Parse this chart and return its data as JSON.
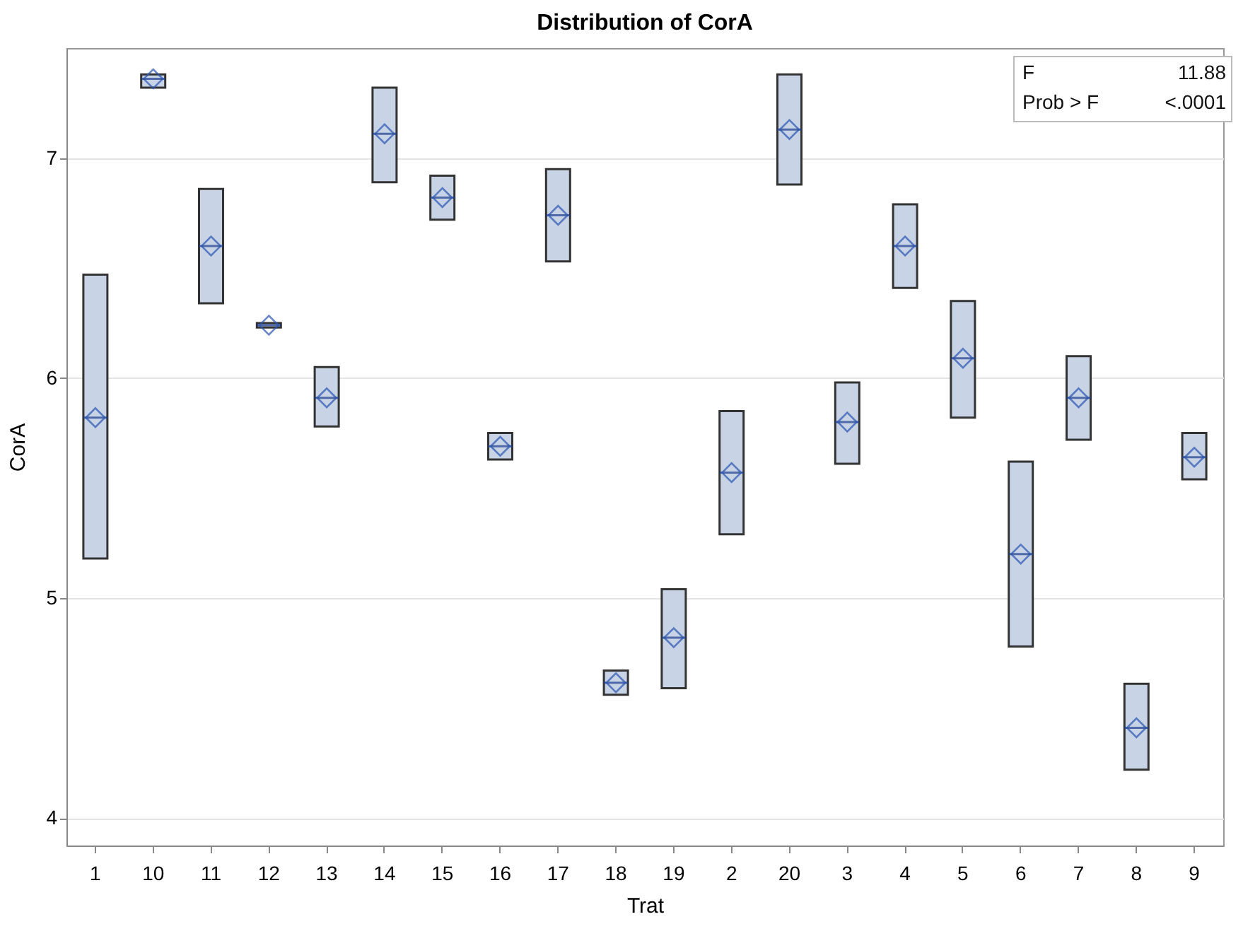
{
  "chart_data": {
    "type": "box",
    "title": "Distribution of CorA",
    "xlabel": "Trat",
    "ylabel": "CorA",
    "categories": [
      "1",
      "10",
      "11",
      "12",
      "13",
      "14",
      "15",
      "16",
      "17",
      "18",
      "19",
      "2",
      "20",
      "3",
      "4",
      "5",
      "6",
      "7",
      "8",
      "9"
    ],
    "color": "#c8d4e6",
    "boxes": [
      {
        "low": 5.18,
        "q1": 5.18,
        "median": 5.82,
        "q3": 6.47,
        "high": 6.47,
        "mean": 5.82
      },
      {
        "low": 7.32,
        "q1": 7.32,
        "median": 7.36,
        "q3": 7.38,
        "high": 7.38,
        "mean": 7.36
      },
      {
        "low": 6.34,
        "q1": 6.34,
        "median": 6.6,
        "q3": 6.86,
        "high": 6.86,
        "mean": 6.6
      },
      {
        "low": 6.23,
        "q1": 6.23,
        "median": 6.24,
        "q3": 6.25,
        "high": 6.25,
        "mean": 6.24
      },
      {
        "low": 5.78,
        "q1": 5.78,
        "median": 5.91,
        "q3": 6.05,
        "high": 6.05,
        "mean": 5.91
      },
      {
        "low": 6.89,
        "q1": 6.89,
        "median": 7.11,
        "q3": 7.32,
        "high": 7.32,
        "mean": 7.11
      },
      {
        "low": 6.72,
        "q1": 6.72,
        "median": 6.82,
        "q3": 6.92,
        "high": 6.92,
        "mean": 6.82
      },
      {
        "low": 5.63,
        "q1": 5.63,
        "median": 5.69,
        "q3": 5.75,
        "high": 5.75,
        "mean": 5.69
      },
      {
        "low": 6.53,
        "q1": 6.53,
        "median": 6.74,
        "q3": 6.95,
        "high": 6.95,
        "mean": 6.74
      },
      {
        "low": 4.56,
        "q1": 4.56,
        "median": 4.615,
        "q3": 4.67,
        "high": 4.67,
        "mean": 4.615
      },
      {
        "low": 4.59,
        "q1": 4.59,
        "median": 4.82,
        "q3": 5.04,
        "high": 5.04,
        "mean": 4.82
      },
      {
        "low": 5.29,
        "q1": 5.29,
        "median": 5.57,
        "q3": 5.85,
        "high": 5.85,
        "mean": 5.57
      },
      {
        "low": 6.88,
        "q1": 6.88,
        "median": 7.13,
        "q3": 7.38,
        "high": 7.38,
        "mean": 7.13
      },
      {
        "low": 5.61,
        "q1": 5.61,
        "median": 5.8,
        "q3": 5.98,
        "high": 5.98,
        "mean": 5.8
      },
      {
        "low": 6.41,
        "q1": 6.41,
        "median": 6.6,
        "q3": 6.79,
        "high": 6.79,
        "mean": 6.6
      },
      {
        "low": 5.82,
        "q1": 5.82,
        "median": 6.09,
        "q3": 6.35,
        "high": 6.35,
        "mean": 6.09
      },
      {
        "low": 4.78,
        "q1": 4.78,
        "median": 5.2,
        "q3": 5.62,
        "high": 5.62,
        "mean": 5.2
      },
      {
        "low": 5.72,
        "q1": 5.72,
        "median": 5.91,
        "q3": 6.1,
        "high": 6.1,
        "mean": 5.91
      },
      {
        "low": 4.22,
        "q1": 4.22,
        "median": 4.41,
        "q3": 4.61,
        "high": 4.61,
        "mean": 4.41
      },
      {
        "low": 5.54,
        "q1": 5.54,
        "median": 5.64,
        "q3": 5.75,
        "high": 5.75,
        "mean": 5.64
      }
    ],
    "ylim": [
      3.875,
      7.5
    ],
    "yticks": [
      4,
      5,
      6,
      7
    ],
    "grid": "y",
    "annotations": [
      "F",
      "11.88",
      "Prob > F",
      "<.0001"
    ]
  }
}
